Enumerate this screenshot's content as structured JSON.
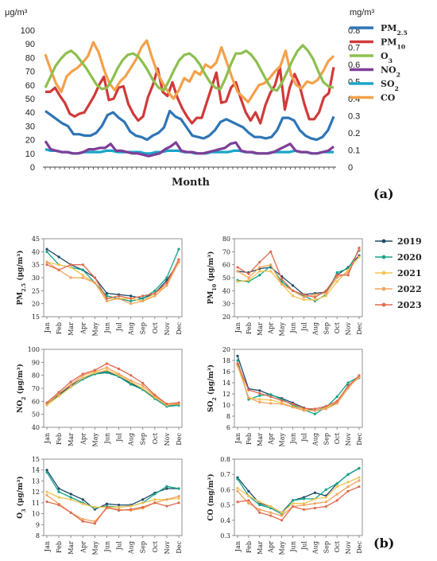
{
  "figure": {
    "panel_a_label": "(a)",
    "panel_b_label": "(b)"
  },
  "chart_data": [
    {
      "type": "line",
      "panel": "a",
      "xlabel": "Month",
      "left_unit": "μg/m³",
      "right_unit": "mg/m³",
      "ylim_left": [
        0,
        100
      ],
      "ylim_right": [
        0,
        0.8
      ],
      "yticks_left": [
        0,
        10,
        20,
        30,
        40,
        50,
        60,
        70,
        80,
        90,
        100
      ],
      "yticks_right": [
        0,
        0.1,
        0.2,
        0.3,
        0.4,
        0.5,
        0.6,
        0.7,
        0.8
      ],
      "grid": false,
      "legend_position": "right",
      "series": [
        {
          "name": "PM2.5",
          "label_main": "PM",
          "label_sub": "2.5",
          "color": "#2e75b6",
          "axis": "left",
          "values": [
            41,
            38,
            35,
            32,
            30,
            24,
            24,
            23,
            23,
            25,
            30,
            38,
            40,
            36,
            33,
            26,
            23,
            22,
            20,
            23,
            25,
            29,
            41,
            37,
            35,
            29,
            23,
            22,
            21,
            23,
            27,
            33,
            35,
            33,
            31,
            29,
            25,
            22,
            22,
            21,
            22,
            27,
            36,
            36,
            34,
            27,
            23,
            21,
            20,
            22,
            27,
            37
          ]
        },
        {
          "name": "PM10",
          "label_main": "PM",
          "label_sub": "10",
          "color": "#d13a3a",
          "axis": "left",
          "values": [
            55,
            55,
            58,
            52,
            47,
            39,
            37,
            39,
            40,
            46,
            52,
            60,
            66,
            49,
            50,
            58,
            59,
            46,
            39,
            34,
            37,
            51,
            60,
            72,
            55,
            52,
            62,
            51,
            43,
            37,
            32,
            36,
            36,
            47,
            58,
            69,
            47,
            48,
            58,
            62,
            50,
            40,
            34,
            40,
            32,
            45,
            54,
            60,
            73,
            42,
            58,
            68,
            60,
            46,
            35,
            35,
            40,
            51,
            54,
            73
          ]
        },
        {
          "name": "O3",
          "label_main": "O",
          "label_sub": "3",
          "color": "#8dbf4e",
          "axis": "left",
          "values": [
            58,
            66,
            74,
            79,
            83,
            85,
            82,
            77,
            72,
            66,
            60,
            57,
            58,
            64,
            72,
            78,
            82,
            83,
            81,
            76,
            70,
            63,
            58,
            56,
            63,
            71,
            78,
            82,
            83,
            80,
            75,
            68,
            62,
            58,
            57,
            65,
            75,
            83,
            83,
            85,
            82,
            77,
            70,
            63,
            57,
            56,
            62,
            70,
            78,
            85,
            89,
            85,
            79,
            70,
            62,
            59,
            58
          ]
        },
        {
          "name": "NO2",
          "label_main": "NO",
          "label_sub": "2",
          "color": "#7e3f98",
          "axis": "left",
          "values": [
            19,
            13,
            12,
            11,
            11,
            10,
            10,
            11,
            13,
            13,
            14,
            14,
            17,
            12,
            12,
            11,
            10,
            10,
            9,
            8,
            9,
            10,
            13,
            15,
            18,
            12,
            11,
            11,
            10,
            10,
            11,
            12,
            13,
            14,
            17,
            18,
            12,
            11,
            11,
            10,
            10,
            10,
            11,
            13,
            15,
            17,
            12,
            11,
            11,
            10,
            10,
            11,
            12,
            15
          ]
        },
        {
          "name": "SO2",
          "label_main": "SO",
          "label_sub": "2",
          "color": "#1aa5c7",
          "axis": "left",
          "values": [
            13,
            12,
            12,
            11,
            11,
            10,
            10,
            11,
            11,
            11,
            11,
            12,
            12,
            11,
            11,
            11,
            11,
            11,
            10,
            10,
            11,
            11,
            12,
            12,
            12,
            11,
            11,
            10,
            10,
            10,
            11,
            11,
            11,
            11,
            12,
            12,
            11,
            11,
            10,
            10,
            10,
            11,
            11,
            11,
            11,
            12,
            11,
            11,
            10,
            10,
            11,
            11,
            11
          ]
        },
        {
          "name": "CO",
          "label_main": "CO",
          "label_sub": "",
          "color": "#f4a14a",
          "axis": "right",
          "values": [
            0.66,
            0.57,
            0.49,
            0.44,
            0.53,
            0.56,
            0.58,
            0.61,
            0.65,
            0.73,
            0.67,
            0.57,
            0.49,
            0.45,
            0.5,
            0.53,
            0.58,
            0.63,
            0.7,
            0.74,
            0.64,
            0.55,
            0.49,
            0.44,
            0.4,
            0.45,
            0.52,
            0.5,
            0.56,
            0.54,
            0.6,
            0.58,
            0.61,
            0.7,
            0.61,
            0.52,
            0.44,
            0.41,
            0.38,
            0.43,
            0.48,
            0.49,
            0.52,
            0.56,
            0.59,
            0.68,
            0.54,
            0.48,
            0.46,
            0.5,
            0.49,
            0.51,
            0.56,
            0.62,
            0.65
          ]
        }
      ]
    },
    {
      "type": "line",
      "panel": "b1",
      "ylabel_main": "PM",
      "ylabel_sub": "2.5",
      "ylabel_unit": " (μg/m³)",
      "ylim": [
        15,
        45
      ],
      "yticks": [
        15,
        20,
        25,
        30,
        35,
        40,
        45
      ],
      "categories": [
        "Jan",
        "Feb",
        "Mar",
        "Apr",
        "May",
        "Jun",
        "Jul",
        "Aug",
        "Sep",
        "Oct",
        "Nov",
        "Dec"
      ],
      "series": [
        {
          "name": "2019",
          "values": [
            41,
            38,
            35,
            33,
            30,
            24,
            23.5,
            23,
            22,
            24,
            29,
            36
          ]
        },
        {
          "name": "2020",
          "values": [
            40,
            35,
            34,
            33,
            28,
            23,
            22,
            21,
            22,
            25,
            30,
            41
          ]
        },
        {
          "name": "2021",
          "values": [
            36,
            35,
            34,
            31,
            28,
            22,
            22,
            22,
            21,
            24,
            27,
            37
          ]
        },
        {
          "name": "2022",
          "values": [
            36,
            33,
            30,
            30,
            28,
            21,
            22,
            20,
            21,
            23,
            27,
            36
          ]
        },
        {
          "name": "2023",
          "values": [
            35,
            33,
            35,
            35,
            30,
            22,
            23,
            22,
            23,
            24,
            28,
            37
          ]
        }
      ]
    },
    {
      "type": "line",
      "panel": "b2",
      "ylabel_main": "PM",
      "ylabel_sub": "10",
      "ylabel_unit": " (μg/m³)",
      "ylim": [
        20,
        80
      ],
      "yticks": [
        20,
        30,
        40,
        50,
        60,
        70,
        80
      ],
      "categories": [
        "Jan",
        "Feb",
        "Mar",
        "Apr",
        "May",
        "Jun",
        "Jul",
        "Aug",
        "Sep",
        "Oct",
        "Nov",
        "Dec"
      ],
      "series": [
        {
          "name": "2019",
          "values": [
            55,
            54,
            57,
            58,
            51,
            44,
            37,
            38,
            39,
            52,
            58,
            67
          ]
        },
        {
          "name": "2020",
          "values": [
            48,
            47,
            52,
            59,
            47,
            40,
            36,
            32,
            37,
            54,
            57,
            71
          ]
        },
        {
          "name": "2021",
          "values": [
            47,
            48,
            55,
            55,
            45,
            36,
            33,
            33,
            36,
            47,
            56,
            66
          ]
        },
        {
          "name": "2022",
          "values": [
            55,
            50,
            58,
            60,
            45,
            40,
            35,
            37,
            38,
            50,
            54,
            72
          ]
        },
        {
          "name": "2023",
          "values": [
            58,
            53,
            62,
            70,
            49,
            40,
            37,
            35,
            40,
            52,
            52,
            73
          ]
        }
      ]
    },
    {
      "type": "line",
      "panel": "b3",
      "ylabel_main": "NO",
      "ylabel_sub": "2",
      "ylabel_unit": " (μg/m³)",
      "ylim": [
        40,
        100
      ],
      "yticks": [
        40,
        50,
        60,
        70,
        80,
        90,
        100
      ],
      "categories": [
        "Jan",
        "Feb",
        "Mar",
        "Apr",
        "May",
        "Jun",
        "Jul",
        "Aug",
        "Sep",
        "Oct",
        "Nov",
        "Dec"
      ],
      "series": [
        {
          "name": "2019",
          "values": [
            58,
            65,
            72,
            78,
            81,
            83,
            79,
            74,
            69,
            63,
            57,
            57
          ]
        },
        {
          "name": "2020",
          "values": [
            58,
            64,
            71,
            77,
            81,
            82,
            79,
            73,
            69,
            62,
            56,
            57
          ]
        },
        {
          "name": "2021",
          "values": [
            57,
            64,
            71,
            78,
            82,
            84,
            80,
            75,
            70,
            63,
            57,
            58
          ]
        },
        {
          "name": "2022",
          "values": [
            58,
            66,
            73,
            80,
            83,
            86,
            81,
            76,
            72,
            64,
            58,
            58
          ]
        },
        {
          "name": "2023",
          "values": [
            59,
            67,
            75,
            81,
            84,
            89,
            85,
            80,
            74,
            65,
            58,
            59
          ]
        }
      ]
    },
    {
      "type": "line",
      "panel": "b4",
      "ylabel_main": "SO",
      "ylabel_sub": "2",
      "ylabel_unit": " (μg/m³)",
      "ylim": [
        6,
        20
      ],
      "yticks": [
        6,
        8,
        10,
        12,
        14,
        16,
        18,
        20
      ],
      "categories": [
        "Jan",
        "Feb",
        "Mar",
        "Apr",
        "May",
        "Jun",
        "Jul",
        "Aug",
        "Sep",
        "Oct",
        "Nov",
        "Dec"
      ],
      "series": [
        {
          "name": "2019",
          "values": [
            18.8,
            12.9,
            12.6,
            11.8,
            11.2,
            10.4,
            9.5,
            9.0,
            9.6,
            10.4,
            13.5,
            14.9
          ]
        },
        {
          "name": "2020",
          "values": [
            18.0,
            11.0,
            11.7,
            11.9,
            11.0,
            10.0,
            9.1,
            8.4,
            9.6,
            11.5,
            14.0,
            15.1
          ]
        },
        {
          "name": "2021",
          "values": [
            17.0,
            11.3,
            11.0,
            10.9,
            10.4,
            9.7,
            9.2,
            9.0,
            9.5,
            10.6,
            13.3,
            15.0
          ]
        },
        {
          "name": "2022",
          "values": [
            17.5,
            11.3,
            10.5,
            10.3,
            10.2,
            9.6,
            9.0,
            9.0,
            9.3,
            10.3,
            13.0,
            15.2
          ]
        },
        {
          "name": "2023",
          "values": [
            17.4,
            12.7,
            12.1,
            11.5,
            10.8,
            10.2,
            9.4,
            9.3,
            9.8,
            10.7,
            13.4,
            15.3
          ]
        }
      ]
    },
    {
      "type": "line",
      "panel": "b5",
      "ylabel_main": "O",
      "ylabel_sub": "3",
      "ylabel_unit": " (μg/m³)",
      "ylim": [
        8,
        15
      ],
      "yticks": [
        8,
        9,
        10,
        11,
        12,
        13,
        14,
        15
      ],
      "categories": [
        "Jan",
        "Feb",
        "Mar",
        "Apr",
        "May",
        "Jun",
        "Jul",
        "Aug",
        "Sep",
        "Oct",
        "Nov",
        "Dec"
      ],
      "series": [
        {
          "name": "2019",
          "values": [
            14.0,
            12.3,
            11.8,
            11.3,
            10.4,
            10.9,
            10.8,
            10.8,
            11.3,
            11.9,
            12.3,
            12.3
          ]
        },
        {
          "name": "2020",
          "values": [
            13.8,
            12.0,
            11.5,
            11.0,
            10.5,
            10.7,
            10.6,
            10.7,
            11.0,
            11.8,
            12.5,
            12.3
          ]
        },
        {
          "name": "2021",
          "values": [
            12.0,
            11.5,
            11.3,
            10.9,
            10.6,
            10.6,
            10.6,
            10.7,
            11.0,
            11.3,
            11.3,
            11.4
          ]
        },
        {
          "name": "2022",
          "values": [
            11.7,
            10.9,
            10.1,
            9.5,
            9.3,
            10.5,
            10.4,
            10.3,
            10.5,
            11.0,
            11.3,
            11.6
          ]
        },
        {
          "name": "2023",
          "values": [
            11.1,
            10.8,
            10.1,
            9.3,
            9.1,
            10.6,
            10.3,
            10.4,
            10.6,
            11.0,
            10.7,
            11.0
          ]
        }
      ]
    },
    {
      "type": "line",
      "panel": "b6",
      "ylabel_main": "CO",
      "ylabel_sub": "",
      "ylabel_unit": " (mg/m³)",
      "ylim": [
        0.3,
        0.8
      ],
      "yticks": [
        0.3,
        0.4,
        0.5,
        0.6,
        0.7,
        0.8
      ],
      "categories": [
        "Jan",
        "Feb",
        "Mar",
        "Apr",
        "May",
        "Jun",
        "Jul",
        "Aug",
        "Sep",
        "Oct",
        "Nov",
        "Dec"
      ],
      "series": [
        {
          "name": "2019",
          "values": [
            0.68,
            0.59,
            0.51,
            0.49,
            0.45,
            0.53,
            0.55,
            0.58,
            0.56,
            0.64,
            0.7,
            0.74
          ]
        },
        {
          "name": "2020",
          "values": [
            0.67,
            0.56,
            0.5,
            0.48,
            0.44,
            0.53,
            0.54,
            0.54,
            0.6,
            0.64,
            0.7,
            0.74
          ]
        },
        {
          "name": "2021",
          "values": [
            0.61,
            0.56,
            0.52,
            0.49,
            0.45,
            0.51,
            0.51,
            0.54,
            0.55,
            0.62,
            0.65,
            0.68
          ]
        },
        {
          "name": "2022",
          "values": [
            0.59,
            0.51,
            0.47,
            0.45,
            0.43,
            0.49,
            0.5,
            0.51,
            0.52,
            0.57,
            0.62,
            0.66
          ]
        },
        {
          "name": "2023",
          "values": [
            0.52,
            0.53,
            0.45,
            0.43,
            0.4,
            0.49,
            0.47,
            0.48,
            0.49,
            0.53,
            0.59,
            0.62
          ]
        }
      ]
    }
  ],
  "legend_b": {
    "items": [
      {
        "label": "2019",
        "color": "#1e4a6b"
      },
      {
        "label": "2020",
        "color": "#12a38a"
      },
      {
        "label": "2021",
        "color": "#f3c350"
      },
      {
        "label": "2022",
        "color": "#f2a35c"
      },
      {
        "label": "2023",
        "color": "#e06a4e"
      }
    ]
  }
}
